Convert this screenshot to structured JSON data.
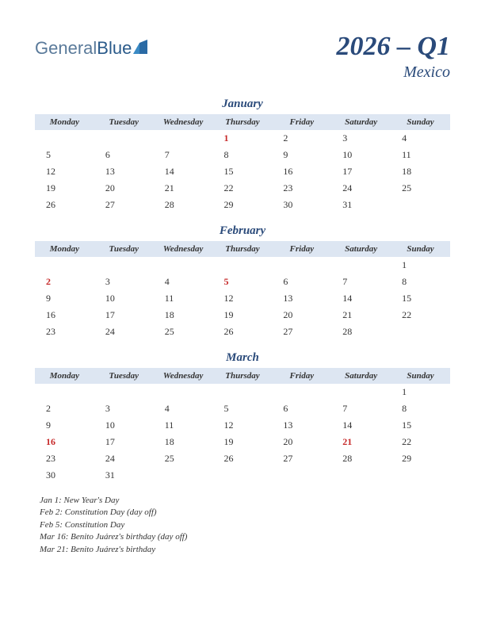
{
  "header": {
    "logo_part1": "General",
    "logo_part2": "Blue",
    "quarter": "2026 – Q1",
    "country": "Mexico"
  },
  "day_headers": [
    "Monday",
    "Tuesday",
    "Wednesday",
    "Thursday",
    "Friday",
    "Saturday",
    "Sunday"
  ],
  "months": [
    {
      "name": "January",
      "weeks": [
        [
          null,
          null,
          null,
          {
            "d": 1,
            "h": true
          },
          {
            "d": 2
          },
          {
            "d": 3
          },
          {
            "d": 4
          }
        ],
        [
          {
            "d": 5
          },
          {
            "d": 6
          },
          {
            "d": 7
          },
          {
            "d": 8
          },
          {
            "d": 9
          },
          {
            "d": 10
          },
          {
            "d": 11
          }
        ],
        [
          {
            "d": 12
          },
          {
            "d": 13
          },
          {
            "d": 14
          },
          {
            "d": 15
          },
          {
            "d": 16
          },
          {
            "d": 17
          },
          {
            "d": 18
          }
        ],
        [
          {
            "d": 19
          },
          {
            "d": 20
          },
          {
            "d": 21
          },
          {
            "d": 22
          },
          {
            "d": 23
          },
          {
            "d": 24
          },
          {
            "d": 25
          }
        ],
        [
          {
            "d": 26
          },
          {
            "d": 27
          },
          {
            "d": 28
          },
          {
            "d": 29
          },
          {
            "d": 30
          },
          {
            "d": 31
          },
          null
        ]
      ]
    },
    {
      "name": "February",
      "weeks": [
        [
          null,
          null,
          null,
          null,
          null,
          null,
          {
            "d": 1
          }
        ],
        [
          {
            "d": 2,
            "h": true
          },
          {
            "d": 3
          },
          {
            "d": 4
          },
          {
            "d": 5,
            "h": true
          },
          {
            "d": 6
          },
          {
            "d": 7
          },
          {
            "d": 8
          }
        ],
        [
          {
            "d": 9
          },
          {
            "d": 10
          },
          {
            "d": 11
          },
          {
            "d": 12
          },
          {
            "d": 13
          },
          {
            "d": 14
          },
          {
            "d": 15
          }
        ],
        [
          {
            "d": 16
          },
          {
            "d": 17
          },
          {
            "d": 18
          },
          {
            "d": 19
          },
          {
            "d": 20
          },
          {
            "d": 21
          },
          {
            "d": 22
          }
        ],
        [
          {
            "d": 23
          },
          {
            "d": 24
          },
          {
            "d": 25
          },
          {
            "d": 26
          },
          {
            "d": 27
          },
          {
            "d": 28
          },
          null
        ]
      ]
    },
    {
      "name": "March",
      "weeks": [
        [
          null,
          null,
          null,
          null,
          null,
          null,
          {
            "d": 1
          }
        ],
        [
          {
            "d": 2
          },
          {
            "d": 3
          },
          {
            "d": 4
          },
          {
            "d": 5
          },
          {
            "d": 6
          },
          {
            "d": 7
          },
          {
            "d": 8
          }
        ],
        [
          {
            "d": 9
          },
          {
            "d": 10
          },
          {
            "d": 11
          },
          {
            "d": 12
          },
          {
            "d": 13
          },
          {
            "d": 14
          },
          {
            "d": 15
          }
        ],
        [
          {
            "d": 16,
            "h": true
          },
          {
            "d": 17
          },
          {
            "d": 18
          },
          {
            "d": 19
          },
          {
            "d": 20
          },
          {
            "d": 21,
            "h": true
          },
          {
            "d": 22
          }
        ],
        [
          {
            "d": 23
          },
          {
            "d": 24
          },
          {
            "d": 25
          },
          {
            "d": 26
          },
          {
            "d": 27
          },
          {
            "d": 28
          },
          {
            "d": 29
          }
        ],
        [
          {
            "d": 30
          },
          {
            "d": 31
          },
          null,
          null,
          null,
          null,
          null
        ]
      ]
    }
  ],
  "holidays": [
    "Jan 1: New Year's Day",
    "Feb 2: Constitution Day (day off)",
    "Feb 5: Constitution Day",
    "Mar 16: Benito Juárez's birthday (day off)",
    "Mar 21: Benito Juárez's birthday"
  ],
  "colors": {
    "header_bg": "#dde6f2",
    "title_color": "#2a4a7a",
    "holiday_color": "#c62828",
    "text_color": "#333333"
  }
}
